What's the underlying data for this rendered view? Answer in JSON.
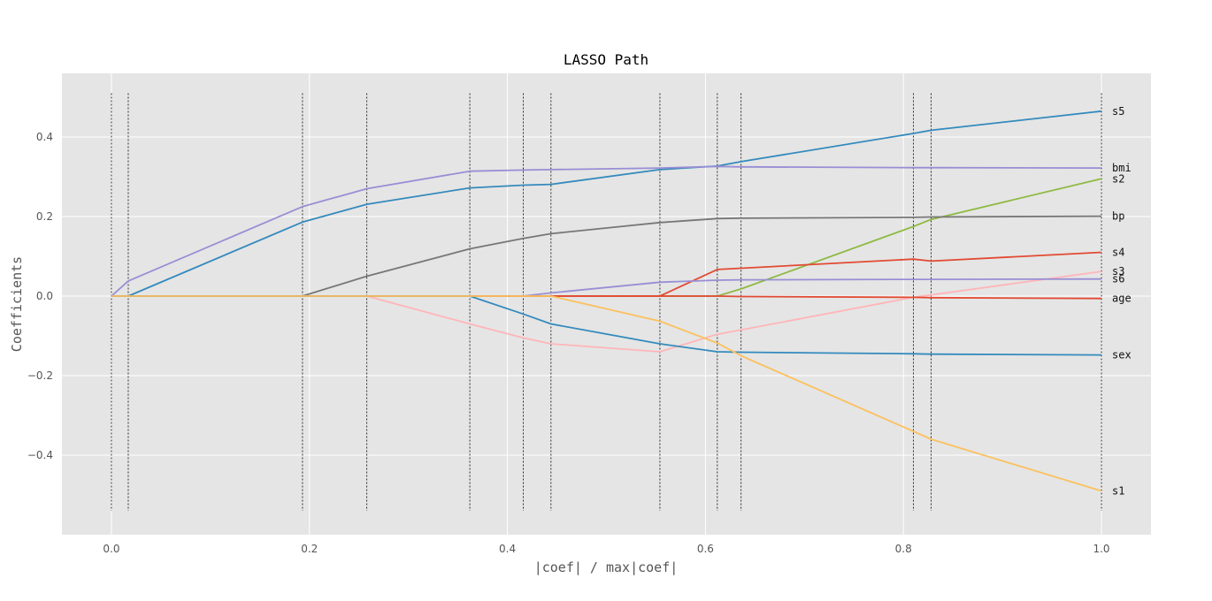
{
  "chart_data": {
    "type": "line",
    "title": "LASSO Path",
    "xlabel": "|coef| / max|coef|",
    "ylabel": "Coefficients",
    "xlim": [
      -0.05,
      1.05
    ],
    "ylim": [
      -0.6,
      0.56
    ],
    "xticks": [
      0.0,
      0.2,
      0.4,
      0.6,
      0.8,
      1.0
    ],
    "xtick_labels": [
      "0.0",
      "0.2",
      "0.4",
      "0.6",
      "0.8",
      "1.0"
    ],
    "yticks": [
      -0.4,
      -0.2,
      0.0,
      0.2,
      0.4
    ],
    "ytick_labels": [
      "−0.4",
      "−0.2",
      "0.0",
      "0.2",
      "0.4"
    ],
    "grid": true,
    "background": "#e5e5e5",
    "vlines": [
      0.0,
      0.017,
      0.193,
      0.258,
      0.362,
      0.416,
      0.444,
      0.554,
      0.612,
      0.636,
      0.81,
      0.828,
      1.0
    ],
    "vline_range": [
      -0.54,
      0.51
    ],
    "series": [
      {
        "name": "s5",
        "color": "#348abd",
        "x": [
          0.0,
          0.017,
          0.193,
          0.258,
          0.362,
          0.416,
          0.444,
          0.554,
          0.612,
          0.636,
          0.81,
          0.828,
          1.0
        ],
        "y": [
          0.0,
          0.0,
          0.186,
          0.231,
          0.272,
          0.279,
          0.281,
          0.318,
          0.327,
          0.338,
          0.409,
          0.417,
          0.465
        ]
      },
      {
        "name": "bmi",
        "color": "#988ed5",
        "x": [
          0.0,
          0.017,
          0.193,
          0.258,
          0.362,
          0.416,
          0.444,
          0.554,
          0.612,
          0.636,
          0.81,
          0.828,
          1.0
        ],
        "y": [
          0.0,
          0.038,
          0.225,
          0.27,
          0.314,
          0.317,
          0.318,
          0.322,
          0.326,
          0.325,
          0.323,
          0.323,
          0.322
        ]
      },
      {
        "name": "s2",
        "color": "#8eba42",
        "x": [
          0.0,
          0.612,
          0.636,
          0.81,
          0.828,
          1.0
        ],
        "y": [
          0.0,
          0.0,
          0.018,
          0.175,
          0.193,
          0.295
        ]
      },
      {
        "name": "bp",
        "color": "#777777",
        "x": [
          0.0,
          0.193,
          0.258,
          0.362,
          0.416,
          0.444,
          0.554,
          0.612,
          0.636,
          0.81,
          0.828,
          1.0
        ],
        "y": [
          0.0,
          0.0,
          0.05,
          0.119,
          0.145,
          0.157,
          0.185,
          0.195,
          0.196,
          0.198,
          0.199,
          0.201
        ]
      },
      {
        "name": "s4",
        "color": "#e24a33",
        "x": [
          0.0,
          0.554,
          0.612,
          0.636,
          0.81,
          0.828,
          1.0
        ],
        "y": [
          0.0,
          0.0,
          0.067,
          0.07,
          0.093,
          0.088,
          0.11
        ]
      },
      {
        "name": "s3",
        "color": "#ffb5b8",
        "x": [
          0.0,
          0.258,
          0.362,
          0.416,
          0.444,
          0.554,
          0.612,
          0.636,
          0.81,
          0.828,
          1.0
        ],
        "y": [
          0.0,
          0.0,
          -0.07,
          -0.105,
          -0.12,
          -0.14,
          -0.096,
          -0.085,
          -0.003,
          0.003,
          0.062
        ]
      },
      {
        "name": "s6",
        "color": "#988ed5",
        "x": [
          0.0,
          0.416,
          0.444,
          0.554,
          0.612,
          0.636,
          0.81,
          0.828,
          1.0
        ],
        "y": [
          0.0,
          0.0,
          0.008,
          0.035,
          0.04,
          0.041,
          0.042,
          0.042,
          0.043
        ]
      },
      {
        "name": "age",
        "color": "#e24a33",
        "x": [
          0.0,
          0.612,
          0.636,
          0.81,
          0.828,
          1.0
        ],
        "y": [
          0.0,
          0.0,
          -0.001,
          -0.003,
          -0.004,
          -0.006
        ]
      },
      {
        "name": "sex",
        "color": "#348abd",
        "x": [
          0.0,
          0.362,
          0.416,
          0.444,
          0.554,
          0.612,
          0.636,
          0.81,
          0.828,
          1.0
        ],
        "y": [
          0.0,
          0.0,
          -0.045,
          -0.07,
          -0.12,
          -0.14,
          -0.141,
          -0.145,
          -0.146,
          -0.148
        ]
      },
      {
        "name": "s1",
        "color": "#fbc15e",
        "x": [
          0.0,
          0.444,
          0.554,
          0.612,
          0.636,
          0.81,
          0.828,
          1.0
        ],
        "y": [
          0.0,
          0.0,
          -0.063,
          -0.118,
          -0.15,
          -0.34,
          -0.36,
          -0.49
        ]
      }
    ],
    "end_labels": [
      {
        "name": "s5",
        "text": "s5",
        "y": 0.465
      },
      {
        "name": "bmi",
        "text": "bmi",
        "y": 0.322
      },
      {
        "name": "s2",
        "text": "s2",
        "y": 0.295
      },
      {
        "name": "bp",
        "text": "bp",
        "y": 0.201
      },
      {
        "name": "s4",
        "text": "s4",
        "y": 0.11
      },
      {
        "name": "s3",
        "text": "s3",
        "y": 0.062
      },
      {
        "name": "s6",
        "text": "s6",
        "y": 0.043
      },
      {
        "name": "age",
        "text": "age",
        "y": -0.006
      },
      {
        "name": "sex",
        "text": "sex",
        "y": -0.148
      },
      {
        "name": "s1",
        "text": "s1",
        "y": -0.49
      }
    ]
  }
}
